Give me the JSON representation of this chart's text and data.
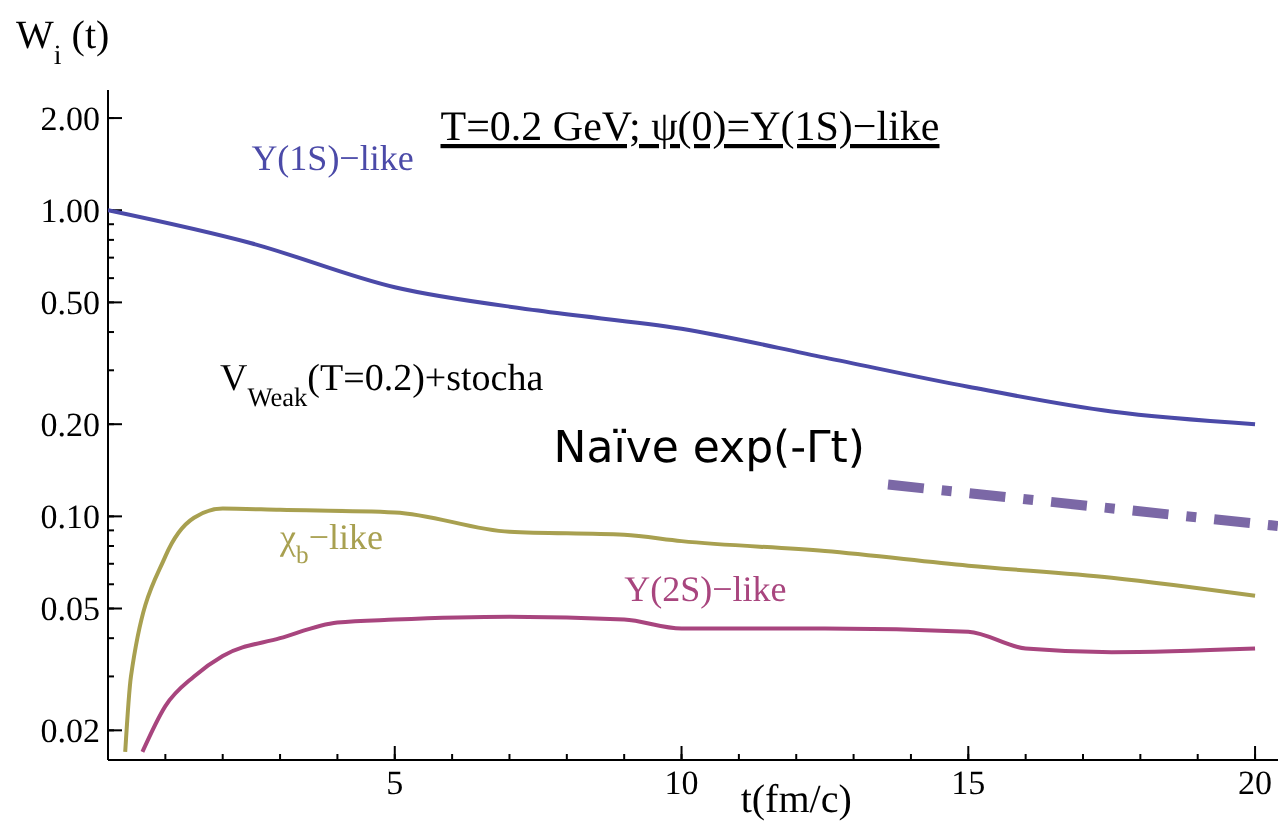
{
  "chart_data": {
    "type": "line",
    "title": "T=0.2 GeV; ψ(0)=Υ(1S)−like",
    "ylabel": "W$_{i}$ (t)",
    "xlabel": "t(fm/c)",
    "annotations": [
      "V$_{Weak}$(T=0.2)+stocha"
    ],
    "log": "y",
    "grid": false,
    "xlim": [
      0,
      20.4
    ],
    "xticks": [
      5,
      10,
      15,
      20
    ],
    "ylim": [
      0.016,
      2.47
    ],
    "yticks": [
      {
        "value": 0.02,
        "label": "0.02"
      },
      {
        "value": 0.05,
        "label": "0.05"
      },
      {
        "value": 0.1,
        "label": "0.10"
      },
      {
        "value": 0.2,
        "label": "0.20"
      },
      {
        "value": 0.5,
        "label": "0.50"
      },
      {
        "value": 1,
        "label": "1.00"
      },
      {
        "value": 2,
        "label": "2.00"
      }
    ],
    "series": [
      {
        "name": "Υ(1S)−like",
        "color": "#4b4aa8",
        "line_style": "solid",
        "x": [
          0,
          2.5,
          5,
          7.5,
          10,
          12.5,
          15,
          17.5,
          20
        ],
        "values": [
          1.0,
          0.78,
          0.56,
          0.47,
          0.41,
          0.33,
          0.265,
          0.22,
          0.2
        ]
      },
      {
        "name": "χ$_{b}$−like",
        "color": "#a8a050",
        "line_style": "solid",
        "x": [
          0.3,
          0.4,
          1,
          1.5,
          2,
          3,
          5,
          7,
          9,
          10,
          12.5,
          15,
          17.5,
          20
        ],
        "values": [
          0.017,
          0.03,
          0.074,
          0.099,
          0.106,
          0.105,
          0.103,
          0.089,
          0.087,
          0.083,
          0.077,
          0.069,
          0.063,
          0.055
        ]
      },
      {
        "name": "Υ(2S)−like",
        "color": "#a8457e",
        "line_style": "solid",
        "x": [
          0.6,
          1,
          1.5,
          2,
          3,
          4,
          5,
          7,
          9,
          10,
          12.5,
          15,
          16,
          17.5,
          20
        ],
        "values": [
          0.017,
          0.024,
          0.03,
          0.035,
          0.04,
          0.045,
          0.046,
          0.047,
          0.046,
          0.043,
          0.043,
          0.042,
          0.037,
          0.036,
          0.037
        ]
      },
      {
        "name": "Naïve exp(-Γt)",
        "color": "#7b68a6",
        "line_style": "dashed",
        "x": [
          13.6,
          20.4
        ],
        "values": [
          0.127,
          0.093
        ]
      }
    ]
  }
}
